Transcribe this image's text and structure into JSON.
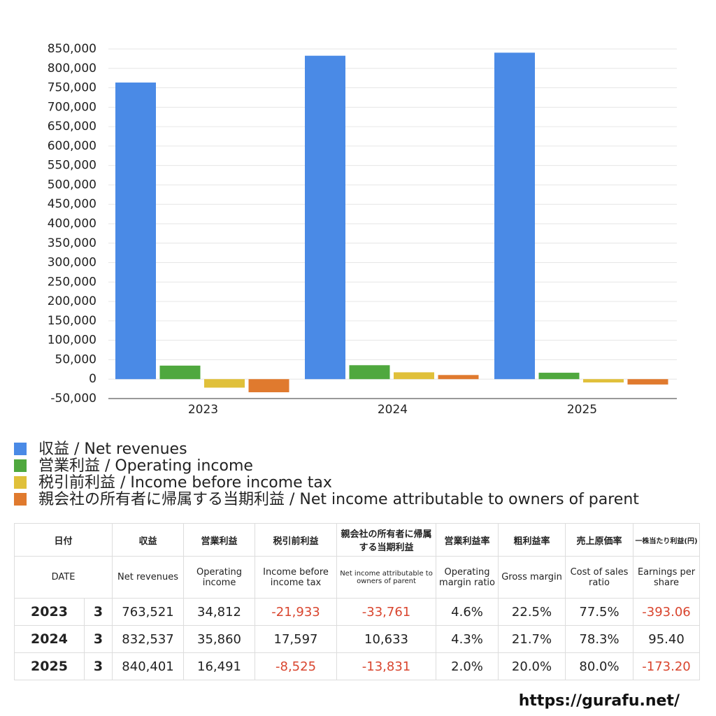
{
  "chart_data": {
    "type": "bar",
    "categories": [
      "2023",
      "2024",
      "2025"
    ],
    "series": [
      {
        "name": "収益 / Net revenues",
        "color": "#4a8ae6",
        "values": [
          763521,
          832537,
          840401
        ]
      },
      {
        "name": "営業利益 / Operating income",
        "color": "#4fa83e",
        "values": [
          34812,
          35860,
          16491
        ]
      },
      {
        "name": "税引前利益 / Income before income tax",
        "color": "#e0c03a",
        "values": [
          -21933,
          17597,
          -8525
        ]
      },
      {
        "name": "親会社の所有者に帰属する当期利益 / Net income attributable to owners of parent",
        "color": "#e07a2e",
        "values": [
          -33761,
          10633,
          -13831
        ]
      }
    ],
    "ylim": [
      -50000,
      850000
    ],
    "yticks": [
      {
        "value": -50000,
        "label": "-50,000"
      },
      0,
      {
        "value": 50000,
        "label": "50,000"
      },
      {
        "value": 100000,
        "label": "100,000"
      },
      {
        "value": 150000,
        "label": "150,000"
      },
      {
        "value": 200000,
        "label": "200,000"
      },
      {
        "value": 250000,
        "label": "250,000"
      },
      {
        "value": 300000,
        "label": "300,000"
      },
      {
        "value": 350000,
        "label": "350,000"
      },
      {
        "value": 400000,
        "label": "400,000"
      },
      {
        "value": 450000,
        "label": "450,000"
      },
      {
        "value": 500000,
        "label": "500,000"
      },
      {
        "value": 550000,
        "label": "550,000"
      },
      {
        "value": 600000,
        "label": "600,000"
      },
      {
        "value": 650000,
        "label": "650,000"
      },
      {
        "value": 700000,
        "label": "700,000"
      },
      {
        "value": 750000,
        "label": "750,000"
      },
      {
        "value": 800000,
        "label": "800,000"
      },
      {
        "value": 850000,
        "label": "850,000"
      }
    ],
    "grid": true
  },
  "table": {
    "header_ja": [
      "日付",
      "収益",
      "営業利益",
      "税引前利益",
      "親会社の所有者に帰属する当期利益",
      "営業利益率",
      "粗利益率",
      "売上原価率",
      "一株当たり利益(円)"
    ],
    "header_en": [
      "DATE",
      "Net revenues",
      "Operating income",
      "Income before income tax",
      "Net income attributable to owners of parent",
      "Operating margin ratio",
      "Gross margin",
      "Cost of sales ratio",
      "Earnings per share"
    ],
    "rows": [
      [
        "2023",
        "3",
        "763,521",
        "34,812",
        "-21,933",
        "-33,761",
        "4.6%",
        "22.5%",
        "77.5%",
        "-393.06"
      ],
      [
        "2024",
        "3",
        "832,537",
        "35,860",
        "17,597",
        "10,633",
        "4.3%",
        "21.7%",
        "78.3%",
        "95.40"
      ],
      [
        "2025",
        "3",
        "840,401",
        "16,491",
        "-8,525",
        "-13,831",
        "2.0%",
        "20.0%",
        "80.0%",
        "-173.20"
      ]
    ]
  },
  "footer": {
    "url": "https://gurafu.net/"
  }
}
